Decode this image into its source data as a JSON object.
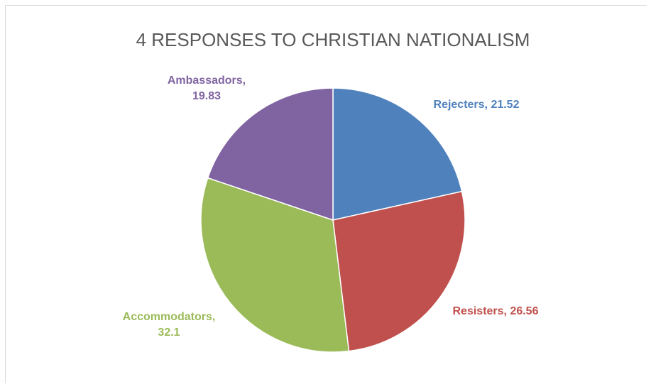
{
  "chart_data": {
    "type": "pie",
    "title": "4 RESPONSES TO CHRISTIAN NATIONALISM",
    "slices": [
      {
        "name": "Rejecters",
        "value": 21.52,
        "color": "#4f81bd",
        "label_lines": [
          "Rejecters, 21.52"
        ]
      },
      {
        "name": "Resisters",
        "value": 26.56,
        "color": "#c0504d",
        "label_lines": [
          "Resisters, 26.56"
        ]
      },
      {
        "name": "Accommodators",
        "value": 32.1,
        "color": "#9bbb59",
        "label_lines": [
          "Accommodators,",
          "32.1"
        ]
      },
      {
        "name": "Ambassadors",
        "value": 19.83,
        "color": "#8064a2",
        "label_lines": [
          "Ambassadors,",
          "19.83"
        ]
      }
    ],
    "start_angle_deg": 0,
    "direction": "clockwise",
    "legend": "none"
  }
}
